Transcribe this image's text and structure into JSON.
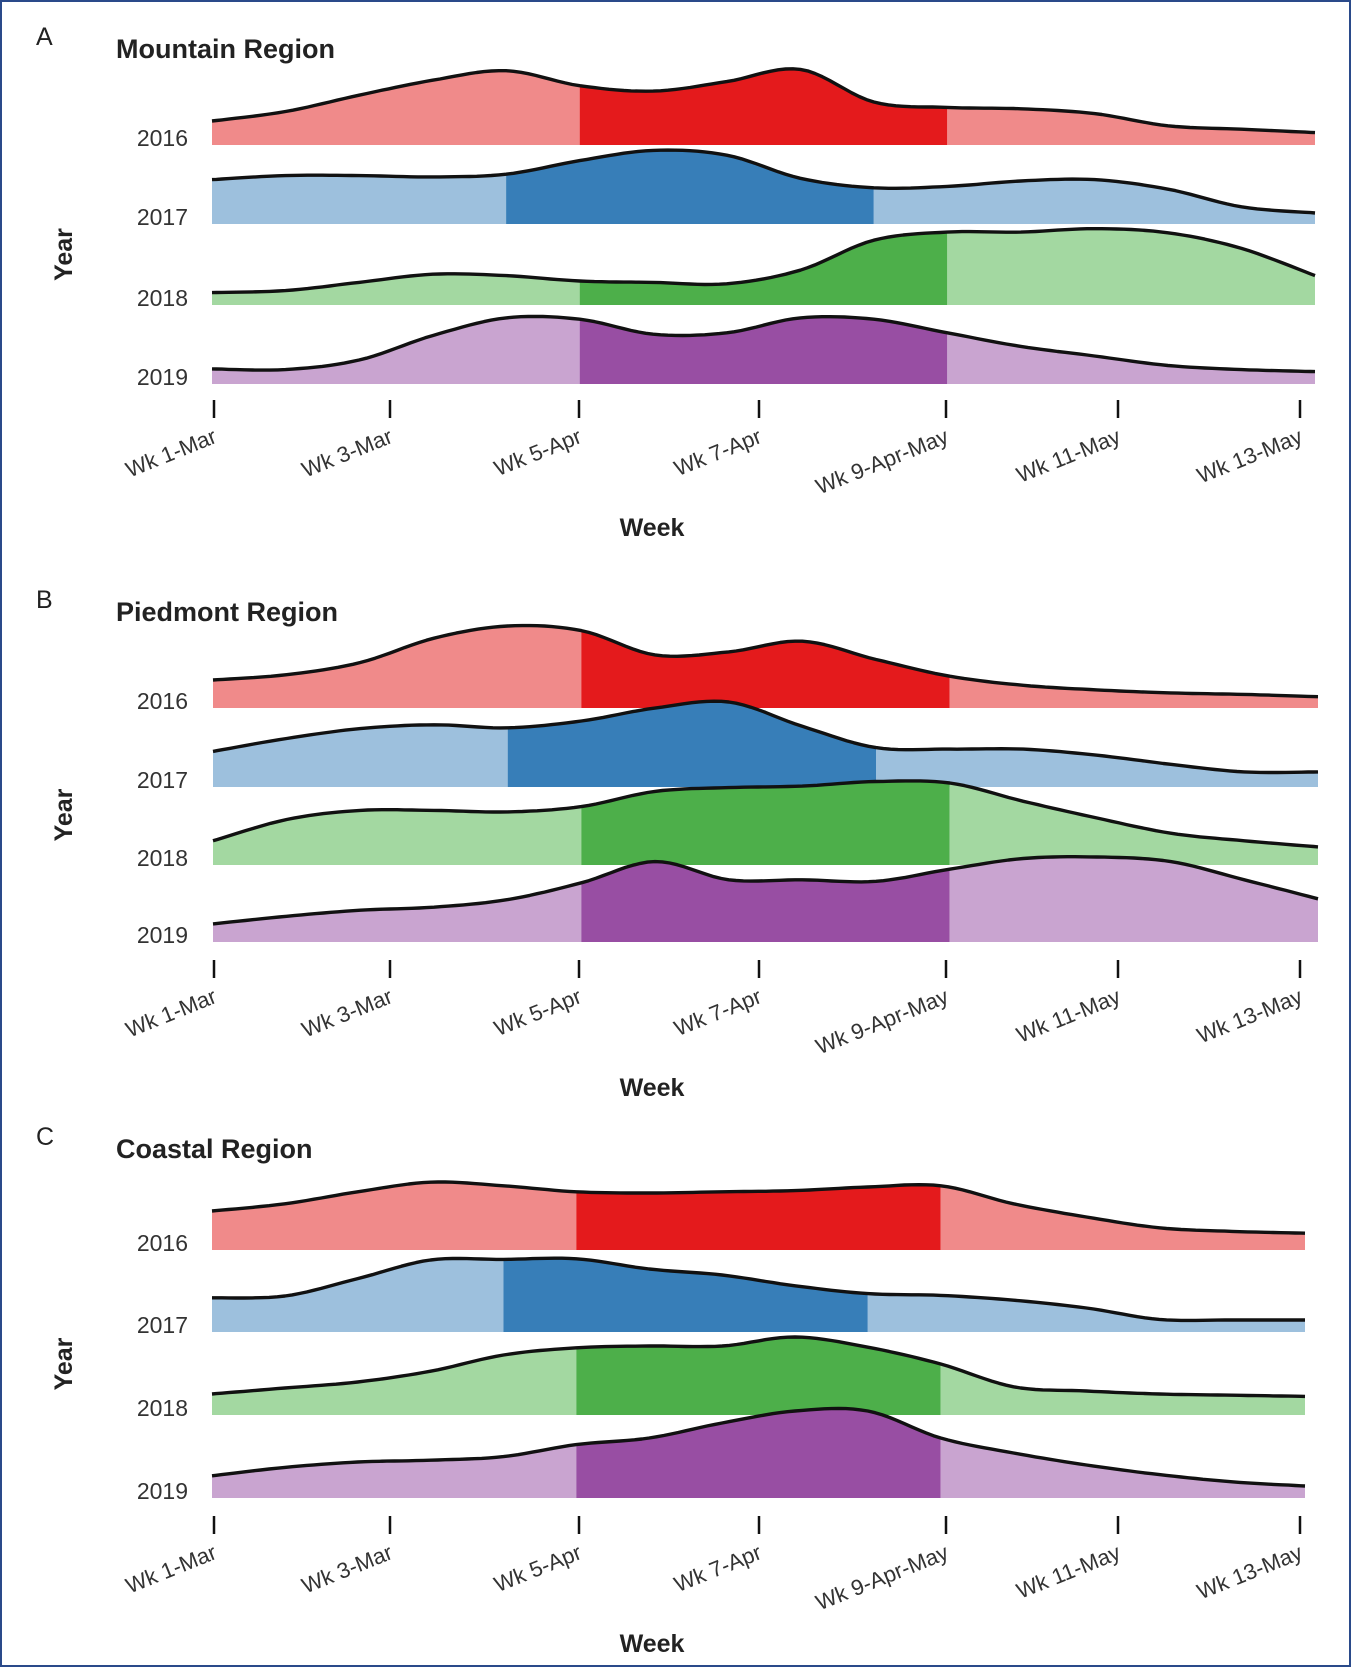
{
  "chart_data": [
    {
      "type": "area",
      "panel_label": "A",
      "title": "Mountain Region",
      "xlabel": "Week",
      "ylabel": "Year",
      "x_ticks": [
        "Wk 1-Mar",
        "Wk 3-Mar",
        "Wk 5-Apr",
        "Wk 7-Apr",
        "Wk 9-Apr-May",
        "Wk 11-May",
        "Wk 13-May"
      ],
      "series": [
        {
          "year": "2016",
          "color": "#e41a1c",
          "light_color": "#f08a8a",
          "highlight_weeks": [
            5,
            10
          ],
          "values": [
            0.22,
            0.36,
            0.6,
            0.82,
            0.96,
            0.74,
            0.66,
            0.8,
            0.98,
            0.5,
            0.42,
            0.4,
            0.33,
            0.15,
            0.1,
            0.05
          ]
        },
        {
          "year": "2017",
          "color": "#377eb8",
          "light_color": "#9dc0dd",
          "highlight_weeks": [
            4,
            9
          ],
          "values": [
            0.52,
            0.58,
            0.58,
            0.56,
            0.6,
            0.8,
            0.95,
            0.88,
            0.54,
            0.4,
            0.42,
            0.5,
            0.52,
            0.38,
            0.12,
            0.03
          ]
        },
        {
          "year": "2018",
          "color": "#4daf4a",
          "light_color": "#a3d8a1",
          "highlight_weeks": [
            5,
            10
          ],
          "values": [
            0.05,
            0.08,
            0.2,
            0.32,
            0.3,
            0.22,
            0.2,
            0.18,
            0.38,
            0.82,
            0.94,
            0.94,
            0.99,
            0.93,
            0.7,
            0.3
          ]
        },
        {
          "year": "2019",
          "color": "#984ea3",
          "light_color": "#c9a4d0",
          "highlight_weeks": [
            5,
            10
          ],
          "values": [
            0.09,
            0.08,
            0.22,
            0.58,
            0.84,
            0.82,
            0.6,
            0.62,
            0.84,
            0.82,
            0.62,
            0.42,
            0.28,
            0.14,
            0.08,
            0.05
          ]
        }
      ]
    },
    {
      "type": "area",
      "panel_label": "B",
      "title": "Piedmont Region",
      "xlabel": "Week",
      "ylabel": "Year",
      "x_ticks": [
        "Wk 1-Mar",
        "Wk 3-Mar",
        "Wk 5-Apr",
        "Wk 7-Apr",
        "Wk 9-Apr-May",
        "Wk 11-May",
        "Wk 13-May"
      ],
      "series": [
        {
          "year": "2016",
          "color": "#e41a1c",
          "light_color": "#f08a8a",
          "highlight_weeks": [
            5,
            10
          ],
          "values": [
            0.25,
            0.32,
            0.48,
            0.8,
            0.96,
            0.9,
            0.58,
            0.62,
            0.76,
            0.52,
            0.3,
            0.18,
            0.12,
            0.08,
            0.06,
            0.03
          ]
        },
        {
          "year": "2017",
          "color": "#377eb8",
          "light_color": "#9dc0dd",
          "highlight_weeks": [
            4,
            9
          ],
          "values": [
            0.35,
            0.52,
            0.65,
            0.7,
            0.66,
            0.75,
            0.92,
            1.0,
            0.68,
            0.4,
            0.38,
            0.38,
            0.3,
            0.18,
            0.08,
            0.08
          ]
        },
        {
          "year": "2018",
          "color": "#4daf4a",
          "light_color": "#a3d8a1",
          "highlight_weeks": [
            5,
            10
          ],
          "values": [
            0.2,
            0.48,
            0.6,
            0.6,
            0.58,
            0.65,
            0.85,
            0.9,
            0.92,
            0.98,
            0.96,
            0.72,
            0.5,
            0.3,
            0.2,
            0.12
          ]
        },
        {
          "year": "2019",
          "color": "#984ea3",
          "light_color": "#c9a4d0",
          "highlight_weeks": [
            5,
            10
          ],
          "values": [
            0.12,
            0.22,
            0.3,
            0.34,
            0.44,
            0.66,
            0.94,
            0.7,
            0.7,
            0.68,
            0.84,
            0.98,
            1.0,
            0.94,
            0.7,
            0.45
          ]
        }
      ]
    },
    {
      "type": "area",
      "panel_label": "C",
      "title": "Coastal Region",
      "xlabel": "Week",
      "ylabel": "Year",
      "x_ticks": [
        "Wk 1-Mar",
        "Wk 3-Mar",
        "Wk 5-Apr",
        "Wk 7-Apr",
        "Wk 9-Apr-May",
        "Wk 11-May",
        "Wk 13-May"
      ],
      "series": [
        {
          "year": "2016",
          "color": "#e41a1c",
          "light_color": "#f08a8a",
          "highlight_weeks": [
            5,
            10
          ],
          "values": [
            0.5,
            0.62,
            0.82,
            0.98,
            0.92,
            0.82,
            0.8,
            0.82,
            0.84,
            0.9,
            0.92,
            0.62,
            0.4,
            0.22,
            0.16,
            0.13
          ]
        },
        {
          "year": "2017",
          "color": "#377eb8",
          "light_color": "#9dc0dd",
          "highlight_weeks": [
            4,
            9
          ],
          "values": [
            0.42,
            0.45,
            0.74,
            1.05,
            1.06,
            1.07,
            0.9,
            0.8,
            0.62,
            0.49,
            0.46,
            0.38,
            0.25,
            0.06,
            0.05,
            0.05
          ]
        },
        {
          "year": "2018",
          "color": "#4daf4a",
          "light_color": "#a3d8a1",
          "highlight_weeks": [
            5,
            10
          ],
          "values": [
            0.2,
            0.3,
            0.4,
            0.58,
            0.85,
            0.97,
            1.0,
            1.0,
            1.15,
            0.98,
            0.7,
            0.32,
            0.25,
            0.2,
            0.18,
            0.16
          ]
        },
        {
          "year": "2019",
          "color": "#984ea3",
          "light_color": "#c9a4d0",
          "highlight_weeks": [
            5,
            10
          ],
          "values": [
            0.22,
            0.36,
            0.45,
            0.48,
            0.54,
            0.74,
            0.85,
            1.1,
            1.3,
            1.3,
            0.85,
            0.6,
            0.4,
            0.24,
            0.12,
            0.05
          ]
        }
      ]
    }
  ]
}
